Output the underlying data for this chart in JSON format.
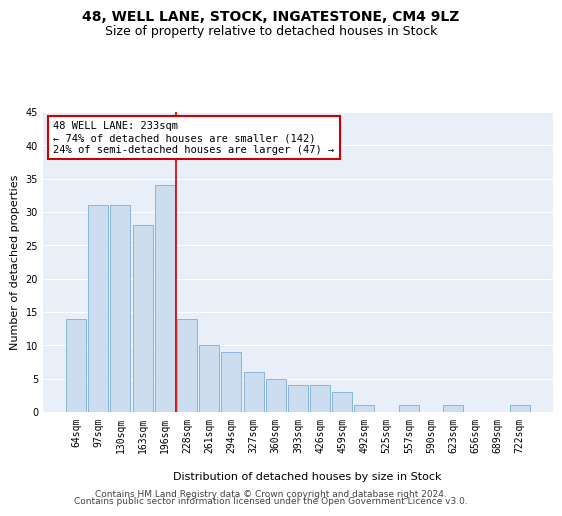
{
  "title": "48, WELL LANE, STOCK, INGATESTONE, CM4 9LZ",
  "subtitle": "Size of property relative to detached houses in Stock",
  "xlabel": "Distribution of detached houses by size in Stock",
  "ylabel": "Number of detached properties",
  "categories": [
    "64sqm",
    "97sqm",
    "130sqm",
    "163sqm",
    "196sqm",
    "228sqm",
    "261sqm",
    "294sqm",
    "327sqm",
    "360sqm",
    "393sqm",
    "426sqm",
    "459sqm",
    "492sqm",
    "525sqm",
    "557sqm",
    "590sqm",
    "623sqm",
    "656sqm",
    "689sqm",
    "722sqm"
  ],
  "values": [
    14,
    31,
    31,
    28,
    34,
    14,
    10,
    9,
    6,
    5,
    4,
    4,
    3,
    1,
    0,
    1,
    0,
    1,
    0,
    0,
    1
  ],
  "bar_color": "#ccddf0",
  "bar_edge_color": "#7bafd4",
  "vline_color": "#cc0000",
  "vline_index": 4.5,
  "annotation_text": "48 WELL LANE: 233sqm\n← 74% of detached houses are smaller (142)\n24% of semi-detached houses are larger (47) →",
  "annotation_box_color": "#ffffff",
  "annotation_box_edge": "#cc0000",
  "ylim": [
    0,
    45
  ],
  "yticks": [
    0,
    5,
    10,
    15,
    20,
    25,
    30,
    35,
    40,
    45
  ],
  "footer_line1": "Contains HM Land Registry data © Crown copyright and database right 2024.",
  "footer_line2": "Contains public sector information licensed under the Open Government Licence v3.0.",
  "bg_color": "#ffffff",
  "plot_bg_color": "#e8eff8",
  "grid_color": "#ffffff",
  "title_fontsize": 10,
  "subtitle_fontsize": 9,
  "axis_label_fontsize": 8,
  "tick_fontsize": 7,
  "annotation_fontsize": 7.5,
  "footer_fontsize": 6.5
}
